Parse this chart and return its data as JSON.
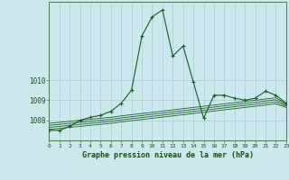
{
  "title": "Graphe pression niveau de la mer (hPa)",
  "bg_color": "#cce8ed",
  "grid_color": "#aaccd4",
  "line_color": "#1a5c28",
  "x_ticks": [
    0,
    1,
    2,
    3,
    4,
    5,
    6,
    7,
    8,
    9,
    10,
    11,
    12,
    13,
    14,
    15,
    16,
    17,
    18,
    19,
    20,
    21,
    22,
    23
  ],
  "y_ticks": [
    1008,
    1009,
    1010
  ],
  "ylim": [
    1007.0,
    1013.9
  ],
  "xlim": [
    0,
    23
  ],
  "main_series": [
    1007.5,
    1007.5,
    1007.7,
    1008.0,
    1008.15,
    1008.25,
    1008.45,
    1008.85,
    1009.5,
    1012.2,
    1013.15,
    1013.5,
    1011.2,
    1011.7,
    1009.9,
    1008.1,
    1009.25,
    1009.25,
    1009.1,
    1009.0,
    1009.1,
    1009.45,
    1009.25,
    1008.85
  ],
  "flat1": [
    1007.85,
    1007.9,
    1007.95,
    1008.0,
    1008.05,
    1008.1,
    1008.15,
    1008.22,
    1008.28,
    1008.34,
    1008.4,
    1008.46,
    1008.52,
    1008.58,
    1008.64,
    1008.7,
    1008.76,
    1008.82,
    1008.88,
    1008.94,
    1009.0,
    1009.06,
    1009.12,
    1008.82
  ],
  "flat2": [
    1007.75,
    1007.8,
    1007.85,
    1007.9,
    1007.95,
    1008.0,
    1008.05,
    1008.12,
    1008.18,
    1008.24,
    1008.3,
    1008.36,
    1008.42,
    1008.48,
    1008.54,
    1008.6,
    1008.66,
    1008.72,
    1008.78,
    1008.84,
    1008.9,
    1008.96,
    1009.02,
    1008.76
  ],
  "flat3": [
    1007.65,
    1007.7,
    1007.75,
    1007.8,
    1007.85,
    1007.9,
    1007.95,
    1008.02,
    1008.08,
    1008.14,
    1008.2,
    1008.26,
    1008.32,
    1008.38,
    1008.44,
    1008.5,
    1008.56,
    1008.62,
    1008.68,
    1008.74,
    1008.8,
    1008.86,
    1008.92,
    1008.7
  ],
  "flat4": [
    1007.55,
    1007.6,
    1007.65,
    1007.7,
    1007.75,
    1007.8,
    1007.85,
    1007.92,
    1007.98,
    1008.04,
    1008.1,
    1008.16,
    1008.22,
    1008.28,
    1008.34,
    1008.4,
    1008.46,
    1008.52,
    1008.58,
    1008.64,
    1008.7,
    1008.76,
    1008.82,
    1008.64
  ]
}
